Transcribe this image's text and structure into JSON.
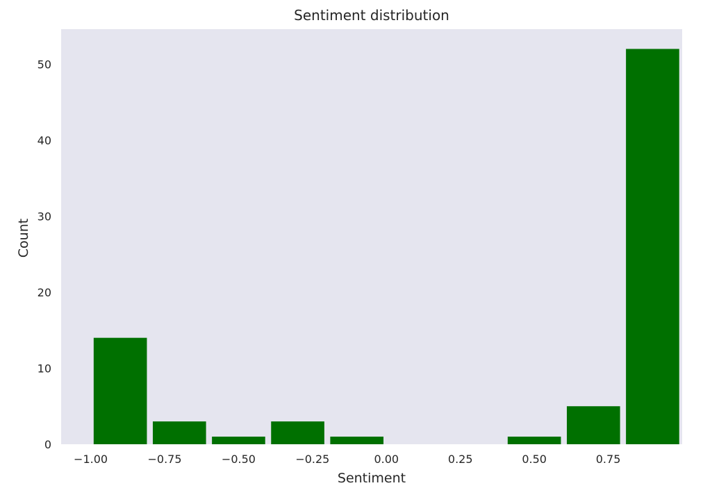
{
  "chart_data": {
    "type": "bar",
    "title": "Sentiment distribution",
    "xlabel": "Sentiment",
    "ylabel": "Count",
    "xlim": [
      -1.1,
      1.0
    ],
    "ylim": [
      0,
      54.6
    ],
    "xticks": [
      -1.0,
      -0.75,
      -0.5,
      -0.25,
      0.0,
      0.25,
      0.5,
      0.75
    ],
    "xtick_labels": [
      "−1.00",
      "−0.75",
      "−0.50",
      "−0.25",
      "0.00",
      "0.25",
      "0.50",
      "0.75"
    ],
    "yticks": [
      0,
      10,
      20,
      30,
      40,
      50
    ],
    "ytick_labels": [
      "0",
      "10",
      "20",
      "30",
      "40",
      "50"
    ],
    "bin_edges": [
      -1.0,
      -0.8,
      -0.6,
      -0.4,
      -0.2,
      0.0,
      0.2,
      0.4,
      0.6,
      0.8,
      1.0
    ],
    "values": [
      14,
      3,
      1,
      3,
      1,
      0,
      0,
      1,
      5,
      52
    ],
    "bar_color": "#007000",
    "background_color": "#e5e5ef",
    "grid": false,
    "legend": false
  }
}
